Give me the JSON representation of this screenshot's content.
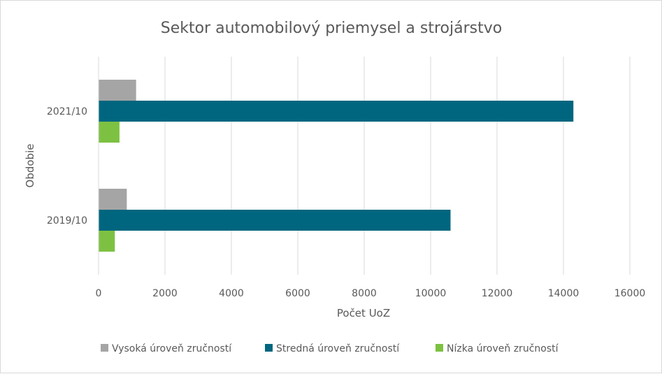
{
  "chart_data": {
    "type": "bar",
    "orientation": "horizontal",
    "title": "Sektor automobilový priemysel a strojárstvo",
    "xlabel": "Počet UoZ",
    "ylabel": "Obdobie",
    "categories": [
      "2019/10",
      "2021/10"
    ],
    "xlim": [
      0,
      16000
    ],
    "xticks": [
      0,
      2000,
      4000,
      6000,
      8000,
      10000,
      12000,
      14000,
      16000
    ],
    "grid": true,
    "legend_position": "bottom",
    "series": [
      {
        "name": "Vysoká úroveň zručností",
        "color": "#a5a5a5",
        "values": [
          850,
          1130
        ]
      },
      {
        "name": "Stredná úroveň zručností",
        "color": "#00667f",
        "values": [
          10600,
          14300
        ]
      },
      {
        "name": "Nízka úroveň zručností",
        "color": "#7dc142",
        "values": [
          490,
          630
        ]
      }
    ]
  }
}
